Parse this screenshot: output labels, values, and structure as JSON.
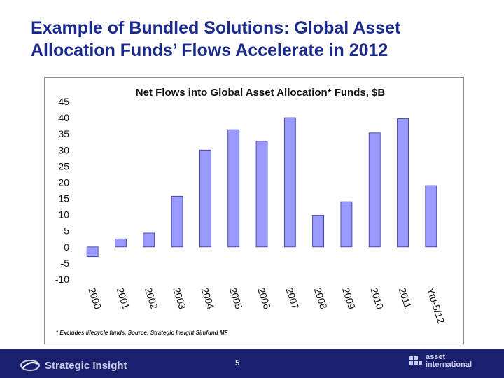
{
  "slide": {
    "title_line1": "Example of Bundled Solutions: Global Asset",
    "title_line2": "Allocation Funds’ Flows Accelerate in 2012",
    "footnote": "* Excludes lifecycle funds. Source: Strategic Insight Simfund MF",
    "page_number": "5",
    "left_logo_text": "Strategic Insight",
    "right_logo_line1": "asset",
    "right_logo_line2": "international"
  },
  "colors": {
    "title": "#1a2a8c",
    "bar_fill": "#9999ff",
    "bar_stroke": "#333399",
    "footer": "#1a1f6e"
  },
  "chart_data": {
    "type": "bar",
    "title": "Net Flows into Global Asset Allocation* Funds, $B",
    "categories": [
      "2000",
      "2001",
      "2002",
      "2003",
      "2004",
      "2005",
      "2006",
      "2007",
      "2008",
      "2009",
      "2010",
      "2011",
      "Ytd-5/12"
    ],
    "values": [
      -3,
      2.5,
      4.3,
      15.7,
      30,
      36.3,
      32.7,
      40,
      9.8,
      14,
      35.3,
      39.7,
      19
    ],
    "ylim": [
      -10,
      45
    ],
    "yticks": [
      "45",
      "40",
      "35",
      "30",
      "25",
      "20",
      "15",
      "10",
      "5",
      "0",
      "-5",
      "-10"
    ],
    "ytick_values": [
      45,
      40,
      35,
      30,
      25,
      20,
      15,
      10,
      5,
      0,
      -5,
      -10
    ],
    "grid": false,
    "legend": "none"
  }
}
